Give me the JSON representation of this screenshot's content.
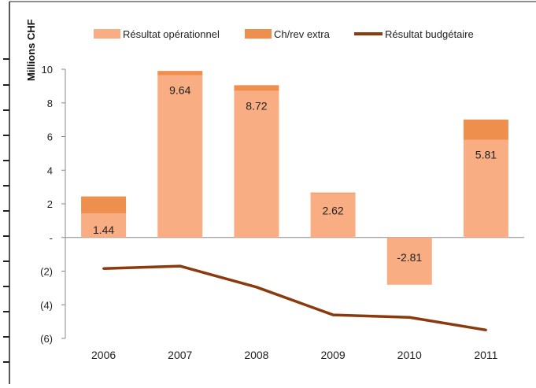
{
  "chart_data": {
    "type": "bar",
    "stacked": true,
    "unit_label": "Millions CHF",
    "categories": [
      "2006",
      "2007",
      "2008",
      "2009",
      "2010",
      "2011"
    ],
    "series": [
      {
        "name": "Résultat opérationnel",
        "kind": "bar",
        "color": "#F8AE82",
        "values": [
          1.44,
          9.64,
          8.72,
          2.62,
          -2.81,
          5.81
        ],
        "data_labels": [
          "1.44",
          "9.64",
          "8.72",
          "2.62",
          "-2.81",
          "5.81"
        ]
      },
      {
        "name": "Ch/rev extra",
        "kind": "bar",
        "color": "#EE8F4E",
        "values": [
          1.0,
          0.26,
          0.33,
          0.05,
          0.0,
          1.2
        ]
      },
      {
        "name": "Résultat budgétaire",
        "kind": "line",
        "color": "#8B3A0E",
        "values": [
          -1.85,
          -1.7,
          -2.95,
          -4.6,
          -4.75,
          -5.5
        ]
      }
    ],
    "y_ticks": [
      {
        "value": 10,
        "label": "10"
      },
      {
        "value": 8,
        "label": "8"
      },
      {
        "value": 6,
        "label": "6"
      },
      {
        "value": 4,
        "label": "4"
      },
      {
        "value": 2,
        "label": "2"
      },
      {
        "value": 0,
        "label": "-"
      },
      {
        "value": -2,
        "label": "(2)"
      },
      {
        "value": -4,
        "label": "(4)"
      },
      {
        "value": -6,
        "label": "(6)"
      }
    ],
    "ylim": [
      -6,
      10
    ],
    "grid": false,
    "legend_position": "top"
  }
}
